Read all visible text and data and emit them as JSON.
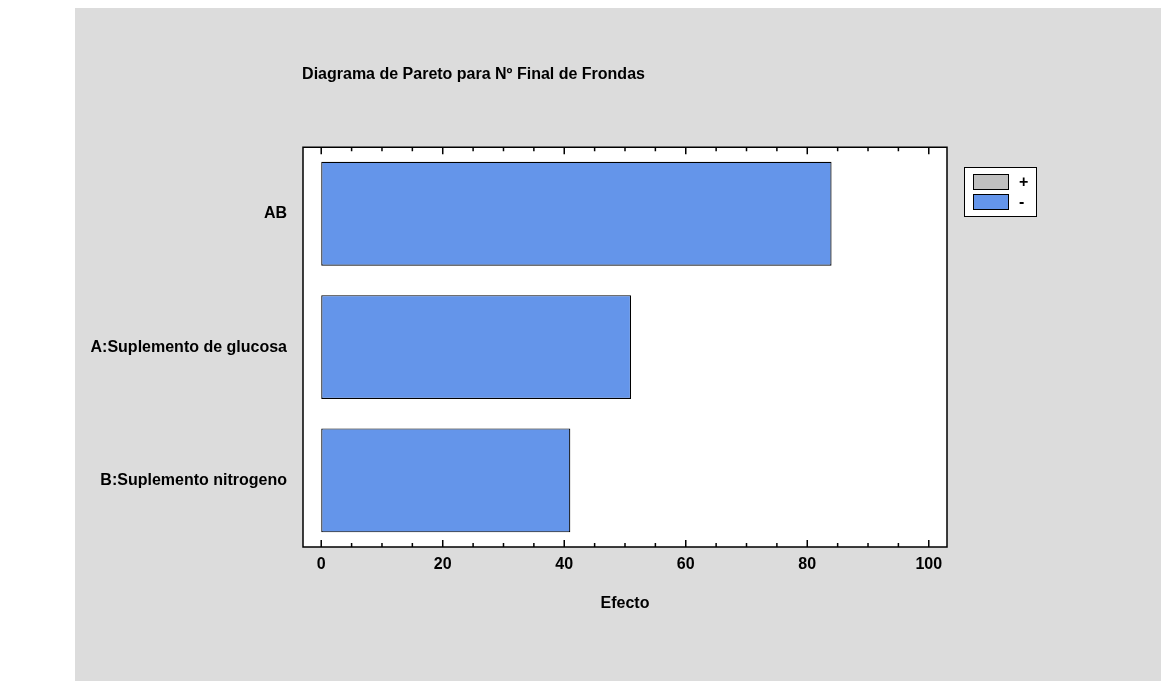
{
  "chart_data": {
    "type": "bar",
    "orientation": "horizontal",
    "title": "Diagrama de Pareto para Nº Final de Frondas",
    "xlabel": "Efecto",
    "categories": [
      "AB",
      "A:Suplemento de glucosa",
      "B:Suplemento nitrogeno"
    ],
    "series": [
      {
        "name": "+",
        "color": "#c0c0c0",
        "values": [
          null,
          null,
          null
        ]
      },
      {
        "name": "-",
        "color": "#6495ea",
        "values": [
          84,
          51,
          41
        ]
      }
    ],
    "xlim": [
      -3,
      103
    ],
    "xticks": [
      0,
      {
        "value": 5,
        "label": null
      },
      {
        "value": 10,
        "label": null
      },
      {
        "value": 15,
        "label": null
      },
      20,
      {
        "value": 25,
        "label": null
      },
      {
        "value": 30,
        "label": null
      },
      {
        "value": 35,
        "label": null
      },
      40,
      {
        "value": 45,
        "label": null
      },
      {
        "value": 50,
        "label": null
      },
      {
        "value": 55,
        "label": null
      },
      60,
      {
        "value": 65,
        "label": null
      },
      {
        "value": 70,
        "label": null
      },
      {
        "value": 75,
        "label": null
      },
      80,
      {
        "value": 85,
        "label": null
      },
      {
        "value": 90,
        "label": null
      },
      {
        "value": 95,
        "label": null
      },
      100
    ],
    "grid": false,
    "legend": "top right"
  }
}
